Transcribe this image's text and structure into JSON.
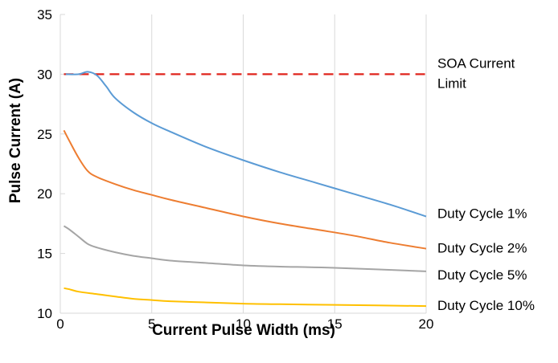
{
  "chart_data": {
    "type": "line",
    "title": "",
    "xlabel": "Current Pulse Width (ms)",
    "ylabel": "Pulse Current (A)",
    "xlim": [
      0,
      20
    ],
    "ylim": [
      10,
      35
    ],
    "x_ticks": [
      "0",
      "5",
      "10",
      "15",
      "20"
    ],
    "y_ticks": [
      "10",
      "15",
      "20",
      "25",
      "30",
      "35"
    ],
    "grid": "vertical",
    "series": [
      {
        "name": "SOA Current Limit",
        "color": "#e0241c",
        "style": "dashed",
        "x": [
          0.2,
          20
        ],
        "y": [
          30,
          30
        ]
      },
      {
        "name": "Duty Cycle 1%",
        "color": "#5b9bd5",
        "style": "solid",
        "x": [
          0.3,
          1.0,
          1.5,
          2.0,
          2.5,
          3,
          4,
          5,
          6,
          8,
          10,
          12,
          14,
          16,
          18,
          20
        ],
        "y": [
          30.0,
          30.0,
          30.2,
          29.9,
          29.0,
          28.0,
          26.8,
          25.9,
          25.2,
          23.9,
          22.8,
          21.8,
          20.9,
          20.0,
          19.1,
          18.1
        ]
      },
      {
        "name": "Duty Cycle 2%",
        "color": "#ed7d31",
        "style": "solid",
        "x": [
          0.2,
          0.5,
          1.0,
          1.5,
          2.0,
          3,
          4,
          5,
          6,
          8,
          10,
          12,
          14,
          16,
          18,
          20
        ],
        "y": [
          25.3,
          24.4,
          23.0,
          21.9,
          21.4,
          20.8,
          20.3,
          19.9,
          19.5,
          18.8,
          18.1,
          17.5,
          17.0,
          16.5,
          15.9,
          15.4
        ]
      },
      {
        "name": "Duty Cycle 5%",
        "color": "#a5a5a5",
        "style": "solid",
        "x": [
          0.2,
          0.5,
          1.0,
          1.5,
          2.0,
          3,
          4,
          5,
          6,
          8,
          10,
          12,
          15,
          20
        ],
        "y": [
          17.3,
          17.0,
          16.4,
          15.8,
          15.5,
          15.1,
          14.8,
          14.6,
          14.4,
          14.2,
          14.0,
          13.9,
          13.8,
          13.5
        ]
      },
      {
        "name": "Duty Cycle 10%",
        "color": "#ffc000",
        "style": "solid",
        "x": [
          0.2,
          0.5,
          1,
          2,
          3,
          4,
          5,
          6,
          8,
          10,
          12,
          15,
          20
        ],
        "y": [
          12.1,
          12.0,
          11.8,
          11.6,
          11.4,
          11.2,
          11.1,
          11.0,
          10.9,
          10.8,
          10.75,
          10.7,
          10.6
        ]
      }
    ]
  }
}
